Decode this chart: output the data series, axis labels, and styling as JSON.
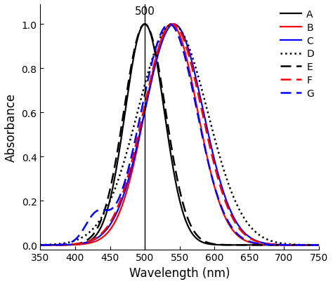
{
  "title": "",
  "xlabel": "Wavelength (nm)",
  "ylabel": "Absorbance",
  "xlim": [
    350,
    750
  ],
  "ylim": [
    -0.02,
    1.09
  ],
  "xticks": [
    350,
    400,
    450,
    500,
    550,
    600,
    650,
    700,
    750
  ],
  "yticks": [
    0.0,
    0.2,
    0.4,
    0.6,
    0.8,
    1.0
  ],
  "vline_x": 500,
  "vline_label": "500",
  "series": [
    {
      "label": "A",
      "color": "black",
      "linestyle": "solid",
      "linewidth": 1.6,
      "peak": 500,
      "sigma": 28,
      "amplitude": 1.0,
      "extra_peaks": []
    },
    {
      "label": "B",
      "color": "red",
      "linestyle": "solid",
      "linewidth": 1.6,
      "peak": 538,
      "sigma": 38,
      "amplitude": 1.0,
      "extra_peaks": []
    },
    {
      "label": "C",
      "color": "blue",
      "linestyle": "solid",
      "linewidth": 1.6,
      "peak": 542,
      "sigma": 42,
      "amplitude": 1.0,
      "extra_peaks": []
    },
    {
      "label": "D",
      "color": "black",
      "linestyle": "dotted",
      "linewidth": 1.8,
      "peak": 540,
      "sigma": 50,
      "amplitude": 1.0,
      "extra_peaks": []
    },
    {
      "label": "E",
      "color": "black",
      "linestyle": "dashed",
      "linewidth": 1.8,
      "peak": 500,
      "sigma": 30,
      "amplitude": 1.0,
      "extra_peaks": []
    },
    {
      "label": "F",
      "color": "red",
      "linestyle": "dashed",
      "linewidth": 1.8,
      "peak": 540,
      "sigma": 42,
      "amplitude": 1.0,
      "extra_peaks": []
    },
    {
      "label": "G",
      "color": "blue",
      "linestyle": "dashed",
      "linewidth": 1.8,
      "peak": 535,
      "sigma": 40,
      "amplitude": 1.0,
      "extra_peaks": [
        {
          "peak": 430,
          "sigma": 16,
          "amplitude": 0.12
        }
      ]
    }
  ],
  "legend_fontsize": 10,
  "axis_fontsize": 12,
  "tick_fontsize": 10,
  "background_color": "#ffffff",
  "figsize": [
    4.74,
    4.06
  ],
  "dpi": 100
}
